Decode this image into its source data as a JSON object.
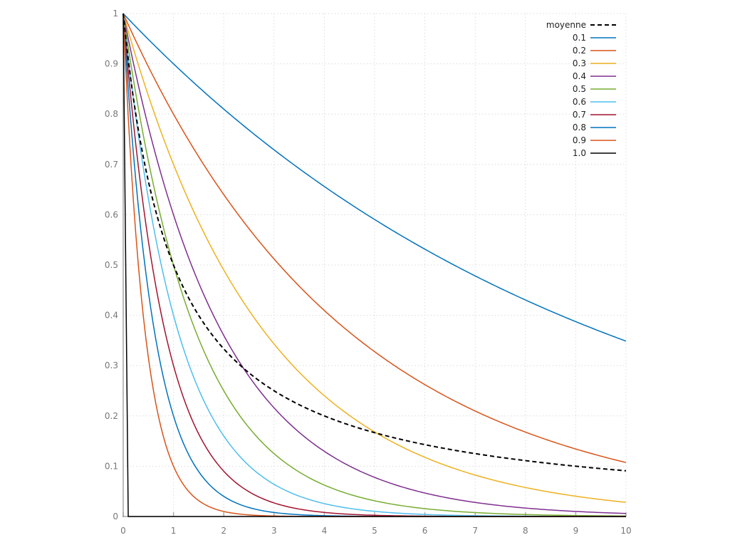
{
  "chart_data": {
    "type": "line",
    "title": "",
    "xlabel": "",
    "ylabel": "",
    "xlim": [
      0,
      10
    ],
    "ylim": [
      0,
      1
    ],
    "grid": true,
    "legend_position": "top-right",
    "x_ticks": [
      "0",
      "1",
      "2",
      "3",
      "4",
      "5",
      "6",
      "7",
      "8",
      "9",
      "10"
    ],
    "y_ticks": [
      "0",
      "0.1",
      "0.2",
      "0.3",
      "0.4",
      "0.5",
      "0.6",
      "0.7",
      "0.8",
      "0.9",
      "1"
    ],
    "series": [
      {
        "name": "moyenne",
        "formula": "1/(x+1)",
        "color": "#000000",
        "dashed": true
      },
      {
        "name": "0.1",
        "formula": "0.9^x",
        "base": 0.9,
        "color": "#0072bd"
      },
      {
        "name": "0.2",
        "formula": "0.8^x",
        "base": 0.8,
        "color": "#d95319"
      },
      {
        "name": "0.3",
        "formula": "0.7^x",
        "base": 0.7,
        "color": "#edb120"
      },
      {
        "name": "0.4",
        "formula": "0.6^x",
        "base": 0.6,
        "color": "#7e2f8e"
      },
      {
        "name": "0.5",
        "formula": "0.5^x",
        "base": 0.5,
        "color": "#77ac30"
      },
      {
        "name": "0.6",
        "formula": "0.4^x",
        "base": 0.4,
        "color": "#4dbeee"
      },
      {
        "name": "0.7",
        "formula": "0.3^x",
        "base": 0.3,
        "color": "#a2142f"
      },
      {
        "name": "0.8",
        "formula": "0.2^x",
        "base": 0.2,
        "color": "#0072bd"
      },
      {
        "name": "0.9",
        "formula": "0.1^x",
        "base": 0.1,
        "color": "#d95319"
      },
      {
        "name": "1.0",
        "formula": "0^x",
        "base": 0.0,
        "color": "#000000"
      }
    ]
  }
}
